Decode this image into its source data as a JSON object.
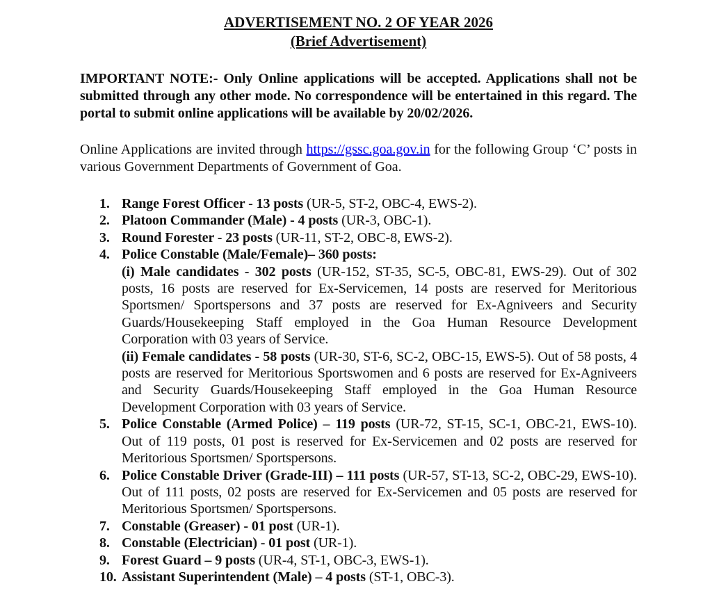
{
  "page": {
    "background_color": "#ffffff",
    "text_color": "#121212",
    "link_color": "#0000ee"
  },
  "header": {
    "title": "ADVERTISEMENT NO. 2 OF YEAR 2026",
    "subtitle": "(Brief Advertisement)"
  },
  "important_note": "IMPORTANT NOTE:- Only Online applications will be accepted. Applications shall not be submitted through any other mode. No correspondence will be entertained in this regard. The portal to submit online applications will be available by 20/02/2026.",
  "intro": {
    "text_before_link": "Online Applications are invited through",
    "link_text": "https://gssc.goa.gov.in",
    "text_after_link": "for the following Group ‘C’ posts in various Government Departments of Government of Goa."
  },
  "posts": [
    {
      "number": "1.",
      "title": "Range Forest Officer - 13 posts",
      "detail": " (UR-5, ST-2, OBC-4, EWS-2)."
    },
    {
      "number": "2.",
      "title": "Platoon Commander (Male) - 4 posts",
      "detail": " (UR-3, OBC-1)."
    },
    {
      "number": "3.",
      "title": "Round Forester - 23 posts",
      "detail": " (UR-11, ST-2, OBC-8, EWS-2)."
    },
    {
      "number": "4.",
      "title": "Police Constable (Male/Female)– 360 posts:",
      "detail": "",
      "sub_items": [
        {
          "label": "(i) Male candidates - 302 posts",
          "detail": " (UR-152, ST-35, SC-5, OBC-81, EWS-29). Out of 302 posts, 16 posts are reserved for Ex-Servicemen, 14 posts are reserved for Meritorious Sportsmen/ Sportspersons and 37 posts are reserved for Ex-Agniveers and Security Guards/Housekeeping Staff employed in the Goa Human Resource Development Corporation with 03 years of Service."
        },
        {
          "label": "(ii) Female candidates - 58 posts",
          "detail": " (UR-30, ST-6, SC-2, OBC-15, EWS-5). Out of 58 posts, 4 posts are reserved for Meritorious Sportswomen and 6 posts are reserved for Ex-Agniveers and Security Guards/Housekeeping Staff employed in the Goa Human Resource Development Corporation with 03 years of Service."
        }
      ]
    },
    {
      "number": "5.",
      "title": "Police Constable (Armed Police) – 119 posts",
      "detail": " (UR-72, ST-15, SC-1, OBC-21, EWS-10). Out of 119 posts, 01 post is reserved for Ex-Servicemen and 02 posts are reserved for Meritorious Sportsmen/ Sportspersons."
    },
    {
      "number": "6.",
      "title": "Police Constable Driver (Grade-III) – 111 posts",
      "detail": " (UR-57, ST-13, SC-2, OBC-29, EWS-10). Out of 111 posts, 02 posts are reserved for Ex-Servicemen and 05 posts are reserved for Meritorious Sportsmen/ Sportspersons."
    },
    {
      "number": "7.",
      "title": "Constable (Greaser) - 01 post",
      "detail": " (UR-1)."
    },
    {
      "number": "8.",
      "title": "Constable (Electrician) - 01 post",
      "detail": " (UR-1)."
    },
    {
      "number": "9.",
      "title": "Forest Guard – 9 posts",
      "detail": " (UR-4, ST-1, OBC-3, EWS-1)."
    },
    {
      "number": "10.",
      "title": "Assistant Superintendent (Male) – 4 posts",
      "detail": " (ST-1, OBC-3)."
    }
  ]
}
